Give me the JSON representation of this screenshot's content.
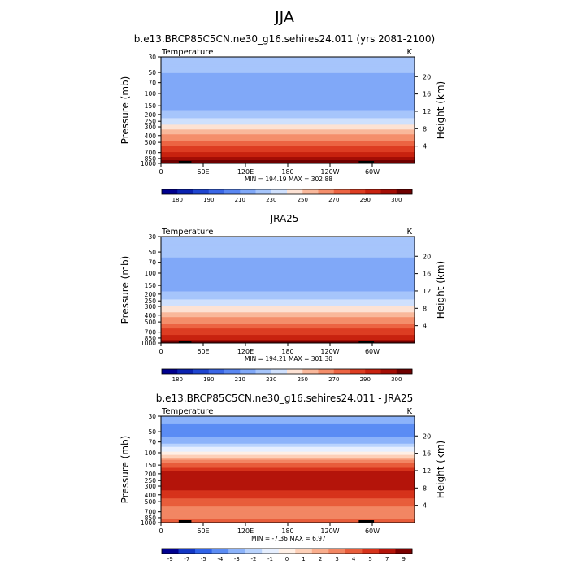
{
  "page_title": "JJA",
  "chart_data": [
    {
      "type": "heatmap",
      "title": "b.e13.BRCP85C5CN.ne30_g16.sehires24.011 (yrs 2081-2100)",
      "variable": "Temperature",
      "units": "K",
      "ylabel": "Pressure (mb)",
      "ylabel_right": "Height (km)",
      "pressure_ticks": [
        "30",
        "50",
        "70",
        "100",
        "150",
        "200",
        "250",
        "300",
        "400",
        "500",
        "700",
        "850",
        "1000"
      ],
      "height_ticks": [
        "20",
        "16",
        "12",
        "8",
        "4"
      ],
      "lon_ticks": [
        "0",
        "60E",
        "120E",
        "180",
        "120W",
        "60W"
      ],
      "stats": "MIN = 194.19  MAX = 302.88",
      "colorbar_labels": [
        "180",
        "190",
        "210",
        "230",
        "250",
        "270",
        "290",
        "300"
      ],
      "color_levels": [
        175,
        180,
        185,
        190,
        200,
        210,
        220,
        230,
        240,
        250,
        260,
        270,
        280,
        290,
        295,
        300
      ],
      "profile": {
        "pressure": [
          30,
          50,
          70,
          100,
          150,
          200,
          250,
          300,
          400,
          500,
          700,
          850,
          1000
        ],
        "temperature": [
          214,
          210,
          206,
          203,
          206,
          214,
          225,
          235,
          252,
          264,
          281,
          292,
          302
        ]
      },
      "min": 194.19,
      "max": 302.88
    },
    {
      "type": "heatmap",
      "title": "JRA25",
      "variable": "Temperature",
      "units": "K",
      "ylabel": "Pressure (mb)",
      "ylabel_right": "Height (km)",
      "pressure_ticks": [
        "30",
        "50",
        "70",
        "100",
        "150",
        "200",
        "250",
        "300",
        "400",
        "500",
        "700",
        "850",
        "1000"
      ],
      "height_ticks": [
        "20",
        "16",
        "12",
        "8",
        "4"
      ],
      "lon_ticks": [
        "0",
        "60E",
        "120E",
        "180",
        "120W",
        "60W"
      ],
      "stats": "MIN = 194.21  MAX = 301.30",
      "colorbar_labels": [
        "180",
        "190",
        "210",
        "230",
        "250",
        "270",
        "290",
        "300"
      ],
      "color_levels": [
        175,
        180,
        185,
        190,
        200,
        210,
        220,
        230,
        240,
        250,
        260,
        270,
        280,
        290,
        295,
        300
      ],
      "profile": {
        "pressure": [
          30,
          50,
          70,
          100,
          150,
          200,
          250,
          300,
          400,
          500,
          700,
          850,
          1000
        ],
        "temperature": [
          217,
          213,
          208,
          202,
          206,
          212,
          222,
          230,
          245,
          258,
          276,
          288,
          298
        ]
      },
      "min": 194.21,
      "max": 301.3
    },
    {
      "type": "heatmap",
      "title": "b.e13.BRCP85C5CN.ne30_g16.sehires24.011 - JRA25",
      "variable": "Temperature",
      "units": "K",
      "ylabel": "Pressure (mb)",
      "ylabel_right": "Height (km)",
      "pressure_ticks": [
        "30",
        "50",
        "70",
        "100",
        "150",
        "200",
        "250",
        "300",
        "400",
        "500",
        "700",
        "850",
        "1000"
      ],
      "height_ticks": [
        "20",
        "16",
        "12",
        "8",
        "4"
      ],
      "lon_ticks": [
        "0",
        "60E",
        "120E",
        "180",
        "120W",
        "60W"
      ],
      "stats": "MIN =  -7.36  MAX =   6.97",
      "colorbar_labels": [
        "-9",
        "-7",
        "-5",
        "-4",
        "-3",
        "-2",
        "-1",
        "0",
        "1",
        "2",
        "3",
        "4",
        "5",
        "7",
        "9"
      ],
      "color_levels": [
        -9,
        -7,
        -5,
        -4,
        -3,
        -2,
        -1,
        0,
        1,
        2,
        3,
        4,
        5,
        7,
        9
      ],
      "profile": {
        "pressure": [
          30,
          50,
          70,
          100,
          150,
          200,
          250,
          300,
          400,
          500,
          700,
          850,
          1000
        ],
        "temperature": [
          -3.5,
          -4.5,
          -3.5,
          -0.5,
          3.5,
          5.5,
          5.5,
          5.5,
          4.5,
          3.5,
          2.5,
          2.5,
          3.5
        ]
      },
      "min": -7.36,
      "max": 6.97
    }
  ]
}
